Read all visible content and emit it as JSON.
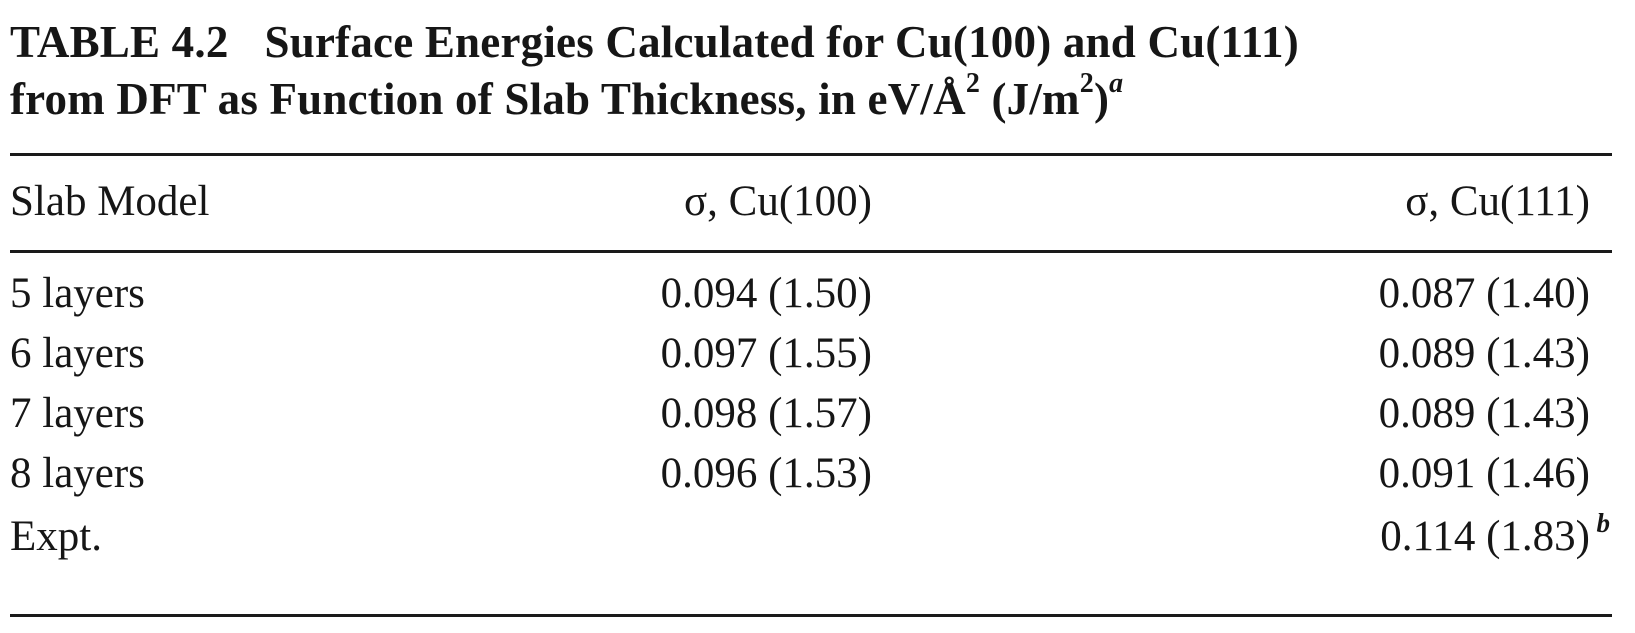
{
  "caption": {
    "label": "TABLE 4.2",
    "line1": "Surface Energies Calculated for Cu(100) and Cu(111)",
    "line2_pre": "from DFT as Function of Slab Thickness, in eV/Å",
    "line2_sup": "2",
    "line2_mid": " (J/m",
    "line2_sup2": "2",
    "line2_post": ")",
    "footnote_mark": "a"
  },
  "table": {
    "headers": [
      "Slab Model",
      "σ, Cu(100)",
      "σ, Cu(111)"
    ],
    "rows": [
      {
        "model": "5 layers",
        "cu100": "0.094 (1.50)",
        "cu111": "0.087 (1.40)",
        "note": ""
      },
      {
        "model": "6 layers",
        "cu100": "0.097 (1.55)",
        "cu111": "0.089 (1.43)",
        "note": ""
      },
      {
        "model": "7 layers",
        "cu100": "0.098 (1.57)",
        "cu111": "0.089 (1.43)",
        "note": ""
      },
      {
        "model": "8 layers",
        "cu100": "0.096 (1.53)",
        "cu111": "0.091 (1.46)",
        "note": ""
      },
      {
        "model": "Expt.",
        "cu100": "",
        "cu111": "0.114 (1.83)",
        "note": "b"
      }
    ]
  }
}
